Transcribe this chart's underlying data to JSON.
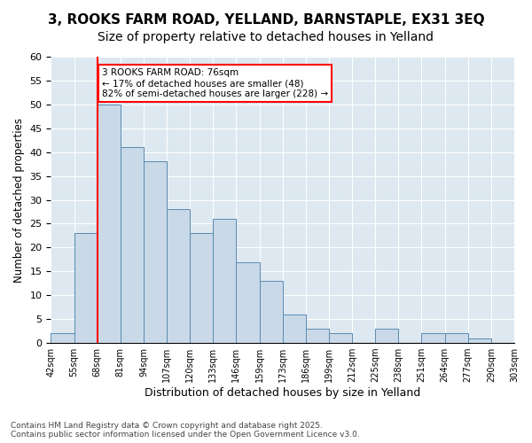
{
  "title_line1": "3, ROOKS FARM ROAD, YELLAND, BARNSTAPLE, EX31 3EQ",
  "title_line2": "Size of property relative to detached houses in Yelland",
  "xlabel": "Distribution of detached houses by size in Yelland",
  "ylabel": "Number of detached properties",
  "bin_labels": [
    "42sqm",
    "55sqm",
    "68sqm",
    "81sqm",
    "94sqm",
    "107sqm",
    "120sqm",
    "133sqm",
    "146sqm",
    "159sqm",
    "173sqm",
    "186sqm",
    "199sqm",
    "212sqm",
    "225sqm",
    "238sqm",
    "251sqm",
    "264sqm",
    "277sqm",
    "290sqm",
    "303sqm"
  ],
  "bar_values": [
    2,
    23,
    50,
    41,
    38,
    28,
    23,
    26,
    17,
    13,
    6,
    3,
    2,
    0,
    3,
    0,
    2,
    2,
    1,
    0
  ],
  "bar_color": "#c9d9e8",
  "bar_edge_color": "#5a8ab0",
  "vline_color": "red",
  "annotation_text": "3 ROOKS FARM ROAD: 76sqm\n← 17% of detached houses are smaller (48)\n82% of semi-detached houses are larger (228) →",
  "annotation_box_color": "white",
  "annotation_box_edge_color": "red",
  "ylim": [
    0,
    60
  ],
  "yticks": [
    0,
    5,
    10,
    15,
    20,
    25,
    30,
    35,
    40,
    45,
    50,
    55,
    60
  ],
  "background_color": "#dde8f0",
  "footer_text": "Contains HM Land Registry data © Crown copyright and database right 2025.\nContains public sector information licensed under the Open Government Licence v3.0.",
  "title_fontsize": 11,
  "subtitle_fontsize": 10
}
